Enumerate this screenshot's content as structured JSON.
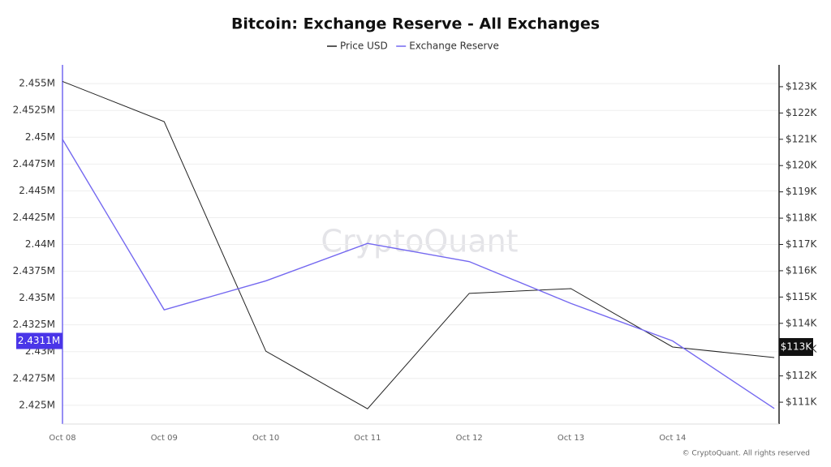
{
  "chart_data": {
    "type": "line",
    "title": "Bitcoin: Exchange Reserve - All Exchanges",
    "watermark": "CryptoQuant",
    "copyright": "© CryptoQuant. All rights reserved",
    "x": [
      "Oct 08",
      "Oct 09",
      "Oct 10",
      "Oct 11",
      "Oct 12",
      "Oct 13",
      "Oct 14",
      null
    ],
    "series": [
      {
        "name": "Price USD",
        "color": "#222222",
        "axis": "y2",
        "values": [
          123200,
          121670,
          112940,
          110750,
          115140,
          115320,
          113100,
          112700
        ]
      },
      {
        "name": "Exchange Reserve",
        "color": "#7468f0",
        "axis": "y",
        "values": [
          2449800,
          2433900,
          2436600,
          2440100,
          2438400,
          2434500,
          2431000,
          2424700
        ]
      }
    ],
    "cursor_labels": {
      "y": "2.4311M",
      "y2": "$113K"
    },
    "ylim": [
      2423250,
      2456750
    ],
    "yticks": [
      {
        "value": 2425000,
        "label": "2.425M"
      },
      {
        "value": 2427500,
        "label": "2.4275M"
      },
      {
        "value": 2430000,
        "label": "2.43M"
      },
      {
        "value": 2432500,
        "label": "2.4325M"
      },
      {
        "value": 2435000,
        "label": "2.435M"
      },
      {
        "value": 2437500,
        "label": "2.4375M"
      },
      {
        "value": 2440000,
        "label": "2.44M"
      },
      {
        "value": 2442500,
        "label": "2.4425M"
      },
      {
        "value": 2445000,
        "label": "2.445M"
      },
      {
        "value": 2447500,
        "label": "2.4475M"
      },
      {
        "value": 2450000,
        "label": "2.45M"
      },
      {
        "value": 2452500,
        "label": "2.4525M"
      },
      {
        "value": 2455000,
        "label": "2.455M"
      }
    ],
    "y2lim": [
      110170,
      123830
    ],
    "y2ticks": [
      {
        "value": 111000,
        "label": "$111K"
      },
      {
        "value": 112000,
        "label": "$112K"
      },
      {
        "value": 113000,
        "label": "$113K"
      },
      {
        "value": 114000,
        "label": "$114K"
      },
      {
        "value": 115000,
        "label": "$115K"
      },
      {
        "value": 116000,
        "label": "$116K"
      },
      {
        "value": 117000,
        "label": "$117K"
      },
      {
        "value": 118000,
        "label": "$118K"
      },
      {
        "value": 119000,
        "label": "$119K"
      },
      {
        "value": 120000,
        "label": "$120K"
      },
      {
        "value": 121000,
        "label": "$121K"
      },
      {
        "value": 122000,
        "label": "$122K"
      },
      {
        "value": 123000,
        "label": "$123K"
      }
    ],
    "grid": true
  }
}
